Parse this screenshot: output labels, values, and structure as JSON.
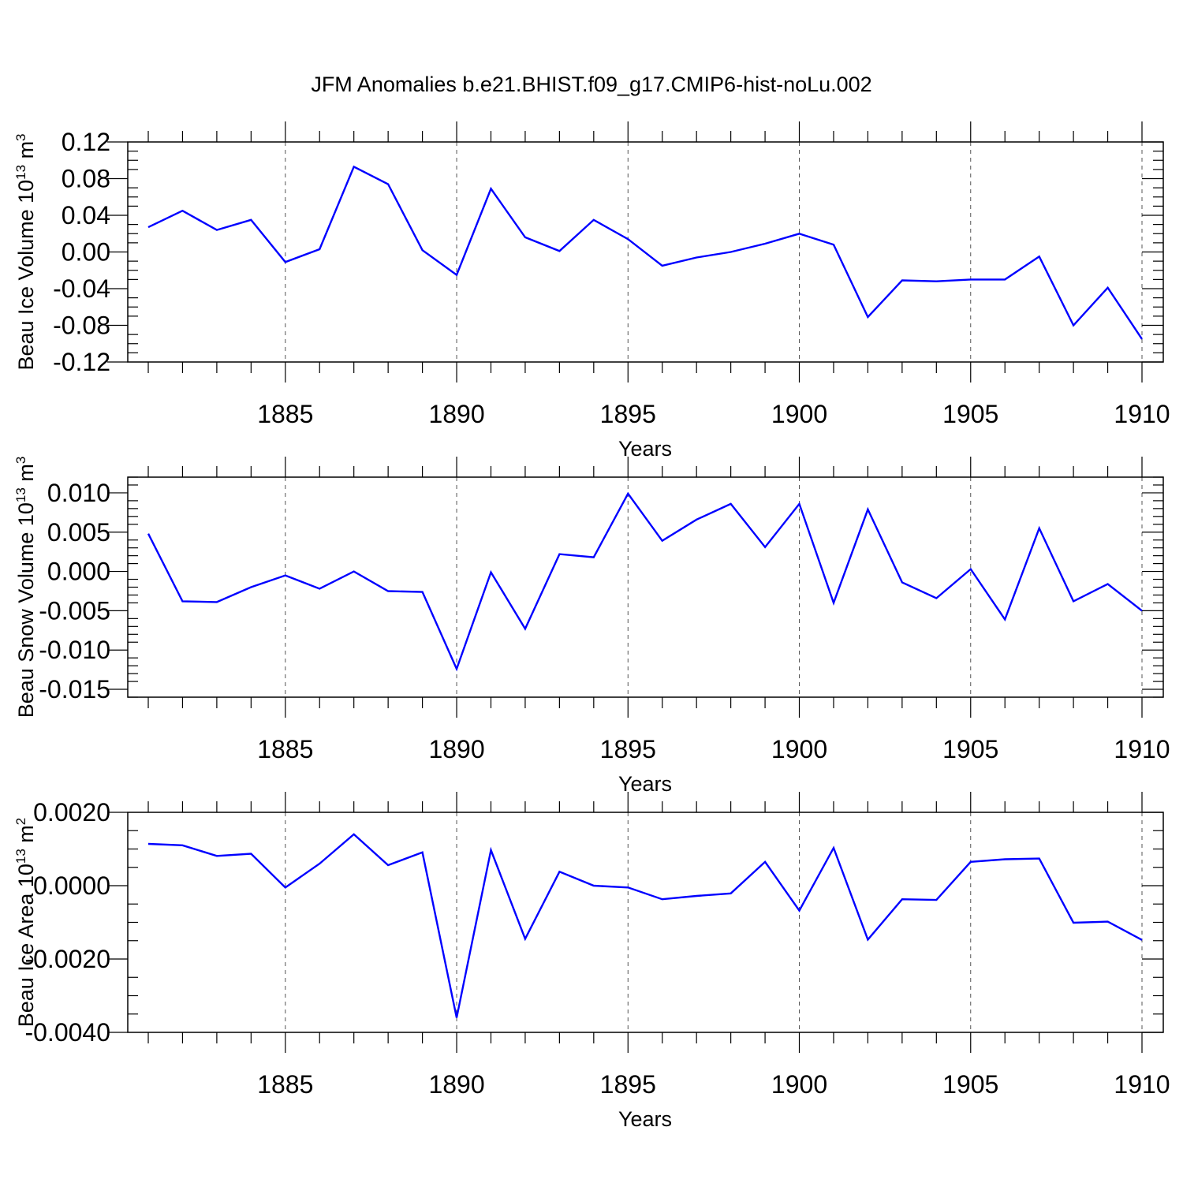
{
  "figure": {
    "title": "JFM Anomalies b.e21.BHIST.f09_g17.CMIP6-hist-noLu.002"
  },
  "chart_data": [
    {
      "type": "line",
      "id": "ice-volume",
      "ylabel": "Beau Ice Volume 10",
      "ylabel_exp": "13",
      "ylabel_unit": " m",
      "ylabel_unit_exp": "3",
      "xlabel": "Years",
      "xlim": [
        1881,
        1910
      ],
      "ylim": [
        -0.12,
        0.12
      ],
      "ytick_step": 0.04,
      "yminor_step": 0.01,
      "ytick_decimals": 2,
      "yticks_labeled": [
        "0.12",
        "0.08",
        "0.04",
        "0.00",
        "-0.04",
        "-0.08",
        "-0.12"
      ],
      "xticks": [
        1885,
        1890,
        1895,
        1900,
        1905,
        1910
      ],
      "xtick_labels": [
        "1885",
        "1890",
        "1895",
        "1900",
        "1905",
        "1910"
      ],
      "grid_x": true,
      "series": [
        {
          "name": "Beau Ice Volume",
          "color": "#0000ff",
          "x": [
            1881,
            1882,
            1883,
            1884,
            1885,
            1886,
            1887,
            1888,
            1889,
            1890,
            1891,
            1892,
            1893,
            1894,
            1895,
            1896,
            1897,
            1898,
            1899,
            1900,
            1901,
            1902,
            1903,
            1904,
            1905,
            1906,
            1907,
            1908,
            1909,
            1910
          ],
          "values": [
            0.027,
            0.045,
            0.024,
            0.035,
            -0.011,
            0.003,
            0.093,
            0.074,
            0.002,
            -0.025,
            0.069,
            0.016,
            0.001,
            0.035,
            0.014,
            -0.015,
            -0.006,
            0.0,
            0.009,
            0.02,
            0.008,
            -0.071,
            -0.031,
            -0.032,
            -0.03,
            -0.03,
            -0.005,
            -0.08,
            -0.039,
            -0.095
          ]
        }
      ]
    },
    {
      "type": "line",
      "id": "snow-volume",
      "ylabel": "Beau Snow Volume 10",
      "ylabel_exp": "13",
      "ylabel_unit": " m",
      "ylabel_unit_exp": "3",
      "xlabel": "Years",
      "xlim": [
        1881,
        1910
      ],
      "ylim": [
        -0.016,
        0.012
      ],
      "ytick_step": 0.005,
      "yminor_step": 0.001,
      "ytick_decimals": 3,
      "yticks_labeled": [
        "0.010",
        "0.005",
        "0.000",
        "-0.005",
        "-0.010",
        "-0.015"
      ],
      "xticks": [
        1885,
        1890,
        1895,
        1900,
        1905,
        1910
      ],
      "xtick_labels": [
        "1885",
        "1890",
        "1895",
        "1900",
        "1905",
        "1910"
      ],
      "grid_x": true,
      "series": [
        {
          "name": "Beau Snow Volume",
          "color": "#0000ff",
          "x": [
            1881,
            1882,
            1883,
            1884,
            1885,
            1886,
            1887,
            1888,
            1889,
            1890,
            1891,
            1892,
            1893,
            1894,
            1895,
            1896,
            1897,
            1898,
            1899,
            1900,
            1901,
            1902,
            1903,
            1904,
            1905,
            1906,
            1907,
            1908,
            1909,
            1910
          ],
          "values": [
            0.0048,
            -0.0038,
            -0.0039,
            -0.002,
            -0.0005,
            -0.0022,
            0.0,
            -0.0025,
            -0.0026,
            -0.0124,
            -0.0001,
            -0.0073,
            0.0022,
            0.0018,
            0.0099,
            0.0039,
            0.0066,
            0.0086,
            0.0031,
            0.0086,
            -0.004,
            0.0079,
            -0.0014,
            -0.0034,
            0.0003,
            -0.0061,
            0.0055,
            -0.0038,
            -0.0016,
            -0.005
          ]
        }
      ]
    },
    {
      "type": "line",
      "id": "ice-area",
      "ylabel": "Beau Ice Area 10",
      "ylabel_exp": "13",
      "ylabel_unit": " m",
      "ylabel_unit_exp": "2",
      "xlabel": "Years",
      "xlim": [
        1881,
        1910
      ],
      "ylim": [
        -0.004,
        0.002
      ],
      "ytick_step": 0.002,
      "yminor_step": 0.0005,
      "ytick_decimals": 4,
      "yticks_labeled": [
        "0.0020",
        "0.0000",
        "-0.0020",
        "-0.0040"
      ],
      "xticks": [
        1885,
        1890,
        1895,
        1900,
        1905,
        1910
      ],
      "xtick_labels": [
        "1885",
        "1890",
        "1895",
        "1900",
        "1905",
        "1910"
      ],
      "grid_x": true,
      "series": [
        {
          "name": "Beau Ice Area",
          "color": "#0000ff",
          "x": [
            1881,
            1882,
            1883,
            1884,
            1885,
            1886,
            1887,
            1888,
            1889,
            1890,
            1891,
            1892,
            1893,
            1894,
            1895,
            1896,
            1897,
            1898,
            1899,
            1900,
            1901,
            1902,
            1903,
            1904,
            1905,
            1906,
            1907,
            1908,
            1909,
            1910
          ],
          "values": [
            0.00114,
            0.0011,
            0.00081,
            0.00087,
            -5e-05,
            0.0006,
            0.0014,
            0.00056,
            0.00091,
            -0.0036,
            0.00097,
            -0.00145,
            0.00038,
            0.0,
            -5e-05,
            -0.00037,
            -0.00028,
            -0.00021,
            0.00065,
            -0.00068,
            0.00103,
            -0.00147,
            -0.00037,
            -0.00039,
            0.00065,
            0.00072,
            0.00074,
            -0.00101,
            -0.00098,
            -0.00148
          ]
        }
      ]
    }
  ]
}
